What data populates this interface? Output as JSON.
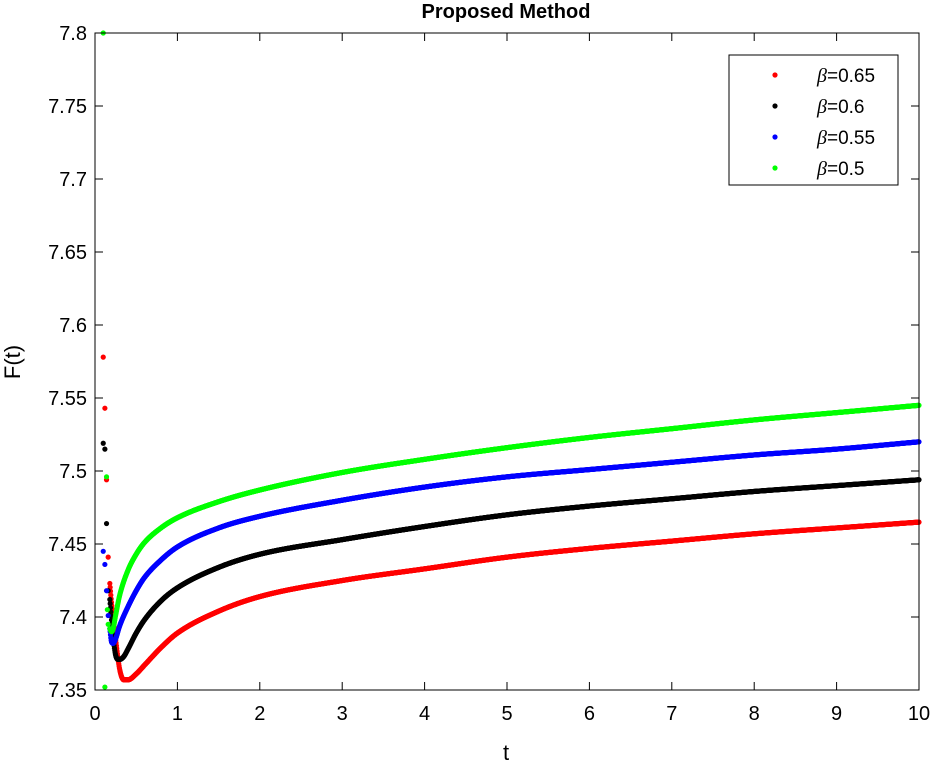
{
  "chart_data": {
    "type": "scatter",
    "title": "Proposed Method",
    "xlabel": "t",
    "ylabel": "F(t)",
    "xlim": [
      0,
      10
    ],
    "ylim": [
      7.35,
      7.8
    ],
    "xticks": [
      "0",
      "1",
      "2",
      "3",
      "4",
      "5",
      "6",
      "7",
      "8",
      "9",
      "10"
    ],
    "yticks": [
      "7.35",
      "7.4",
      "7.45",
      "7.5",
      "7.55",
      "7.6",
      "7.65",
      "7.7",
      "7.75",
      "7.8"
    ],
    "grid": false,
    "box": true,
    "legend_position": "top-right",
    "series": [
      {
        "name": "=0.65",
        "symbol": "β",
        "color": "#ff0000",
        "x": [
          0.1,
          0.12,
          0.14,
          0.16,
          0.18,
          0.2,
          0.25,
          0.3,
          0.35,
          0.4,
          0.5,
          0.6,
          0.8,
          1,
          1.5,
          2,
          3,
          4,
          5,
          6,
          7,
          8,
          9,
          10
        ],
        "y": [
          7.578,
          7.543,
          7.494,
          7.441,
          7.423,
          7.41,
          7.385,
          7.364,
          7.357,
          7.357,
          7.361,
          7.367,
          7.379,
          7.389,
          7.404,
          7.414,
          7.425,
          7.433,
          7.441,
          7.447,
          7.452,
          7.457,
          7.461,
          7.465
        ]
      },
      {
        "name": "=0.6",
        "symbol": "β",
        "color": "#000000",
        "x": [
          0.1,
          0.12,
          0.14,
          0.16,
          0.18,
          0.2,
          0.22,
          0.25,
          0.28,
          0.3,
          0.35,
          0.4,
          0.5,
          0.6,
          0.8,
          1,
          1.5,
          2,
          3,
          4,
          5,
          6,
          7,
          8,
          9,
          10
        ],
        "y": [
          7.519,
          7.515,
          7.464,
          7.418,
          7.412,
          7.398,
          7.386,
          7.374,
          7.371,
          7.371,
          7.373,
          7.378,
          7.389,
          7.398,
          7.411,
          7.42,
          7.434,
          7.443,
          7.453,
          7.462,
          7.47,
          7.476,
          7.481,
          7.486,
          7.49,
          7.494
        ]
      },
      {
        "name": "=0.55",
        "symbol": "β",
        "color": "#0000ff",
        "x": [
          0.1,
          0.12,
          0.14,
          0.16,
          0.18,
          0.2,
          0.22,
          0.25,
          0.3,
          0.4,
          0.5,
          0.6,
          0.8,
          1,
          1.5,
          2,
          3,
          4,
          5,
          6,
          7,
          8,
          9,
          10
        ],
        "y": [
          7.445,
          7.436,
          7.418,
          7.401,
          7.392,
          7.383,
          7.382,
          7.385,
          7.394,
          7.407,
          7.418,
          7.427,
          7.439,
          7.448,
          7.461,
          7.469,
          7.48,
          7.489,
          7.496,
          7.501,
          7.506,
          7.511,
          7.515,
          7.52
        ]
      },
      {
        "name": "=0.5",
        "symbol": "β",
        "color": "#00ff00",
        "x": [
          0.1,
          0.12,
          0.14,
          0.15,
          0.16,
          0.18,
          0.2,
          0.22,
          0.25,
          0.3,
          0.4,
          0.5,
          0.6,
          0.8,
          1,
          1.5,
          2,
          3,
          4,
          5,
          6,
          7,
          8,
          9,
          10
        ],
        "y": [
          7.8,
          7.352,
          7.496,
          7.405,
          7.395,
          7.392,
          7.39,
          7.392,
          7.401,
          7.415,
          7.432,
          7.443,
          7.451,
          7.461,
          7.468,
          7.479,
          7.487,
          7.499,
          7.508,
          7.516,
          7.523,
          7.529,
          7.535,
          7.54,
          7.545
        ]
      }
    ]
  }
}
